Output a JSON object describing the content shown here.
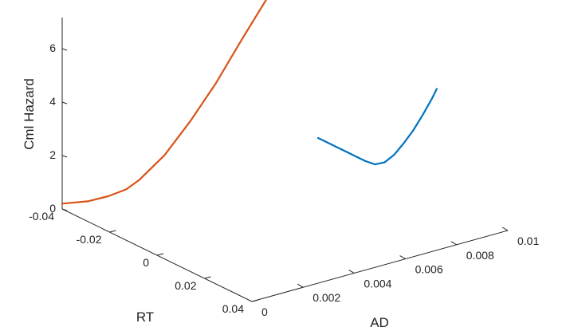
{
  "chart_data": {
    "type": "line",
    "projection": "3d",
    "title": "",
    "axes": {
      "z": {
        "label": "Cml Hazard",
        "range": [
          0,
          7
        ],
        "ticks": [
          "0",
          "2",
          "4",
          "6"
        ]
      },
      "rt": {
        "label": "RT",
        "range": [
          -0.04,
          0.04
        ],
        "ticks": [
          "-0.04",
          "-0.02",
          "0",
          "0.02",
          "0.04"
        ]
      },
      "ad": {
        "label": "AD",
        "range": [
          0,
          0.01
        ],
        "ticks": [
          "0",
          "0.002",
          "0.004",
          "0.006",
          "0.008",
          "0.01"
        ]
      }
    },
    "grid": false,
    "legend": "none",
    "series": [
      {
        "plane": "rt",
        "color": "#0072BD",
        "points": [
          {
            "rt": -0.04,
            "hazard": 0.0
          },
          {
            "rt": -0.036,
            "hazard": 0.0
          },
          {
            "rt": -0.032,
            "hazard": 0.0
          },
          {
            "rt": -0.028,
            "hazard": 0.0
          },
          {
            "rt": -0.024,
            "hazard": 0.0
          },
          {
            "rt": -0.02,
            "hazard": 0.0
          },
          {
            "rt": -0.016,
            "hazard": 0.05
          },
          {
            "rt": -0.012,
            "hazard": 0.3
          },
          {
            "rt": -0.008,
            "hazard": 0.75
          },
          {
            "rt": -0.004,
            "hazard": 1.35
          },
          {
            "rt": 0.0,
            "hazard": 2.0
          },
          {
            "rt": 0.004,
            "hazard": 2.75
          },
          {
            "rt": 0.008,
            "hazard": 3.55
          },
          {
            "rt": 0.01,
            "hazard": 4.0
          }
        ]
      },
      {
        "plane": "ad",
        "color": "#D95319",
        "points": [
          {
            "ad": 0.0,
            "hazard": 0.2
          },
          {
            "ad": 0.001,
            "hazard": 0.02
          },
          {
            "ad": 0.0018,
            "hazard": 0.0
          },
          {
            "ad": 0.0025,
            "hazard": 0.07
          },
          {
            "ad": 0.003,
            "hazard": 0.28
          },
          {
            "ad": 0.004,
            "hazard": 0.95
          },
          {
            "ad": 0.005,
            "hazard": 1.95
          },
          {
            "ad": 0.006,
            "hazard": 3.1
          },
          {
            "ad": 0.007,
            "hazard": 4.45
          },
          {
            "ad": 0.008,
            "hazard": 5.75
          }
        ]
      }
    ]
  }
}
